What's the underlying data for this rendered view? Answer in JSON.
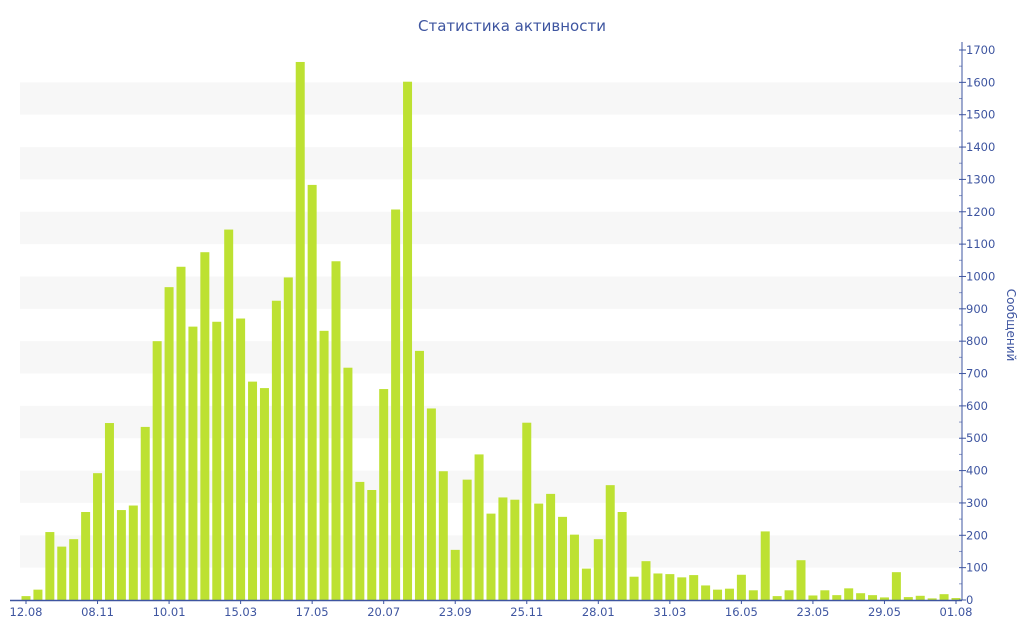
{
  "chart_data": {
    "type": "bar",
    "title": "Статистика активности",
    "xlabel": "",
    "ylabel": "Сообщений",
    "ylim": [
      0,
      1700
    ],
    "y_ticks": [
      0,
      100,
      200,
      300,
      400,
      500,
      600,
      700,
      800,
      900,
      1000,
      1100,
      1200,
      1300,
      1400,
      1500,
      1600,
      1700
    ],
    "y_axis_position": "right",
    "grid": "alternating horizontal bands",
    "legend": "none",
    "x_ticks": [
      {
        "index": 0,
        "label": "12.08"
      },
      {
        "index": 6,
        "label": "08.11"
      },
      {
        "index": 12,
        "label": "10.01"
      },
      {
        "index": 18,
        "label": "15.03"
      },
      {
        "index": 24,
        "label": "17.05"
      },
      {
        "index": 30,
        "label": "20.07"
      },
      {
        "index": 36,
        "label": "23.09"
      },
      {
        "index": 42,
        "label": "25.11"
      },
      {
        "index": 48,
        "label": "28.01"
      },
      {
        "index": 54,
        "label": "31.03"
      },
      {
        "index": 60,
        "label": "16.05"
      },
      {
        "index": 66,
        "label": "23.05"
      },
      {
        "index": 72,
        "label": "29.05"
      },
      {
        "index": 78,
        "label": "01.08"
      }
    ],
    "values": [
      12,
      32,
      210,
      165,
      188,
      272,
      392,
      547,
      278,
      292,
      535,
      800,
      967,
      1030,
      845,
      1075,
      860,
      1145,
      870,
      675,
      655,
      925,
      997,
      1663,
      1283,
      832,
      1047,
      718,
      365,
      340,
      652,
      1207,
      1602,
      770,
      592,
      398,
      155,
      372,
      450,
      267,
      317,
      310,
      548,
      298,
      328,
      257,
      202,
      97,
      188,
      355,
      272,
      72,
      120,
      82,
      80,
      70,
      77,
      45,
      32,
      35,
      78,
      30,
      212,
      12,
      30,
      123,
      14,
      30,
      15,
      36,
      21,
      15,
      8,
      86,
      9,
      13,
      5,
      18,
      6
    ],
    "colors": {
      "bar": "#bde132",
      "axis": "#3e55a0",
      "band": "#f7f7f7"
    }
  }
}
